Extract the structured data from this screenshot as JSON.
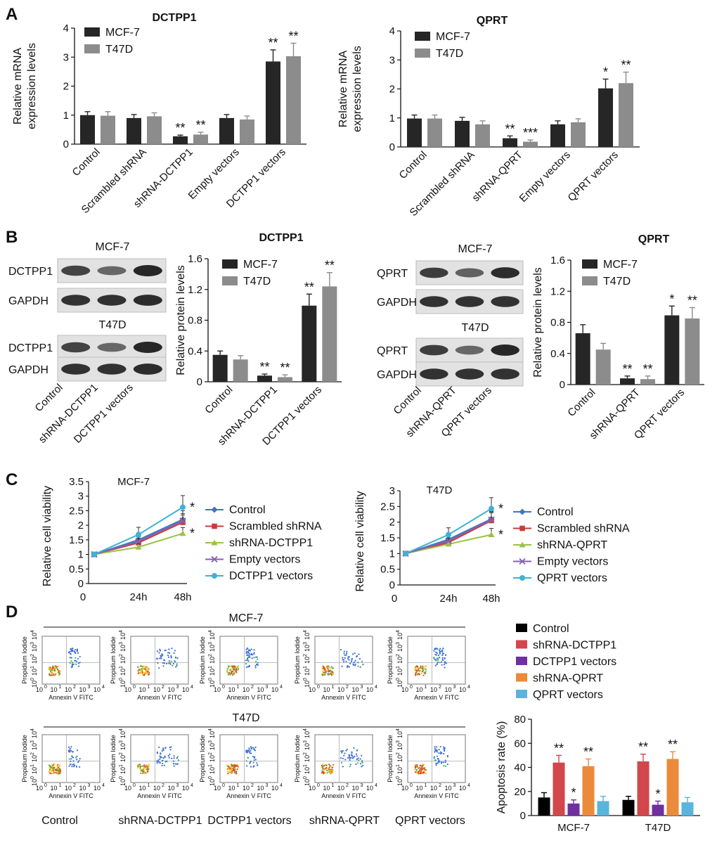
{
  "panel_labels": {
    "A": "A",
    "B": "B",
    "C": "C",
    "D": "D"
  },
  "colors": {
    "mcf7": "#262626",
    "t47d": "#8c8c8c",
    "control": "#000000",
    "sh_dctpp1": "#d2474c",
    "dctpp1_vec": "#7030a0",
    "sh_qprt": "#eb8a3a",
    "qprt_vec": "#5ab4dc",
    "line_control": "#3a78c2",
    "line_scrambled": "#cc3a3a",
    "line_sh": "#99c346",
    "line_empty": "#8462b0",
    "line_vec": "#3db2d6"
  },
  "chart_data": [
    {
      "id": "A1",
      "type": "bar",
      "title": "DCTPP1",
      "ylabel_lines": [
        "Relative mRNA",
        "expression levels"
      ],
      "ylim": [
        0,
        4
      ],
      "yticks": [
        "0",
        "1",
        "2",
        "3",
        "4"
      ],
      "categories": [
        "Control",
        "Scrambled shRNA",
        "shRNA-DCTPP1",
        "Empty vectors",
        "DCTPP1 vectors"
      ],
      "series": [
        {
          "name": "MCF-7",
          "values": [
            1.0,
            0.9,
            0.27,
            0.9,
            2.85
          ],
          "errors": [
            0.12,
            0.12,
            0.04,
            0.12,
            0.4
          ],
          "sig": [
            "",
            "",
            "**",
            "",
            "**"
          ]
        },
        {
          "name": "T47D",
          "values": [
            0.98,
            0.96,
            0.33,
            0.85,
            3.03
          ],
          "errors": [
            0.14,
            0.12,
            0.08,
            0.12,
            0.45
          ],
          "sig": [
            "",
            "",
            "**",
            "",
            "**"
          ]
        }
      ]
    },
    {
      "id": "A2",
      "type": "bar",
      "title": "QPRT",
      "ylabel_lines": [
        "Relative mRNA",
        "expression levels"
      ],
      "ylim": [
        0,
        4
      ],
      "yticks": [
        "0",
        "1",
        "2",
        "3",
        "4"
      ],
      "categories": [
        "Control",
        "Scrambled shRNA",
        "shRNA-QPRT",
        "Empty vectors",
        "QPRT vectors"
      ],
      "series": [
        {
          "name": "MCF-7",
          "values": [
            0.98,
            0.9,
            0.3,
            0.78,
            2.02
          ],
          "errors": [
            0.12,
            0.12,
            0.08,
            0.12,
            0.32
          ],
          "sig": [
            "",
            "",
            "**",
            "",
            "*"
          ]
        },
        {
          "name": "T47D",
          "values": [
            0.98,
            0.78,
            0.18,
            0.85,
            2.2
          ],
          "errors": [
            0.12,
            0.12,
            0.06,
            0.12,
            0.38
          ],
          "sig": [
            "",
            "",
            "***",
            "",
            "**"
          ]
        }
      ]
    },
    {
      "id": "B1",
      "type": "bar",
      "title": "DCTPP1",
      "ylabel_lines": [
        "Relative protein levels"
      ],
      "ylim": [
        0,
        1.6
      ],
      "yticks": [
        "0",
        "0.4",
        "0.8",
        "1.2",
        "1.6"
      ],
      "categories": [
        "Control",
        "shRNA-DCTPP1",
        "DCTPP1 vectors"
      ],
      "series": [
        {
          "name": "MCF-7",
          "values": [
            0.35,
            0.08,
            0.99
          ],
          "errors": [
            0.05,
            0.02,
            0.15
          ],
          "sig": [
            "",
            "**",
            "**"
          ]
        },
        {
          "name": "T47D",
          "values": [
            0.29,
            0.06,
            1.24
          ],
          "errors": [
            0.05,
            0.03,
            0.18
          ],
          "sig": [
            "",
            "**",
            "**"
          ]
        }
      ]
    },
    {
      "id": "B2",
      "type": "bar",
      "title": "QPRT",
      "ylabel_lines": [
        "Relative protein levels"
      ],
      "ylim": [
        0,
        1.6
      ],
      "yticks": [
        "0",
        "0.4",
        "0.8",
        "1.2",
        "1.6"
      ],
      "categories": [
        "Control",
        "shRNA-QPRT",
        "QPRT vectors"
      ],
      "series": [
        {
          "name": "MCF-7",
          "values": [
            0.66,
            0.08,
            0.89
          ],
          "errors": [
            0.11,
            0.03,
            0.12
          ],
          "sig": [
            "",
            "**",
            "*"
          ]
        },
        {
          "name": "T47D",
          "values": [
            0.45,
            0.07,
            0.85
          ],
          "errors": [
            0.08,
            0.04,
            0.14
          ],
          "sig": [
            "",
            "**",
            "**"
          ]
        }
      ]
    },
    {
      "id": "C1",
      "type": "line",
      "title": "MCF-7",
      "ylabel": "Relative cell viability",
      "ylim": [
        0,
        3.5
      ],
      "yticks": [
        "0",
        "0.5",
        "1",
        "1.5",
        "2",
        "2.5",
        "3",
        "3.5"
      ],
      "x": [
        "0",
        "24h",
        "48h"
      ],
      "x_pos": [
        0,
        24,
        48
      ],
      "series": [
        {
          "name": "Control",
          "values": [
            1,
            1.5,
            2.2
          ],
          "errors": [
            0.1,
            0.2,
            0.3
          ],
          "sig": ""
        },
        {
          "name": "Scrambled shRNA",
          "values": [
            1,
            1.4,
            2.1
          ],
          "errors": [
            0.1,
            0.15,
            0.25
          ],
          "sig": ""
        },
        {
          "name": "shRNA-DCTPP1",
          "values": [
            1,
            1.25,
            1.72
          ],
          "errors": [
            0.1,
            0.12,
            0.2
          ],
          "sig": "*"
        },
        {
          "name": "Empty vectors",
          "values": [
            1,
            1.45,
            2.15
          ],
          "errors": [
            0.1,
            0.15,
            0.25
          ],
          "sig": ""
        },
        {
          "name": "DCTPP1 vectors",
          "values": [
            1,
            1.68,
            2.62
          ],
          "errors": [
            0.1,
            0.25,
            0.4
          ],
          "sig": "*"
        }
      ]
    },
    {
      "id": "C2",
      "type": "line",
      "title": "T47D",
      "ylabel": "Relative cell viability",
      "ylim": [
        0,
        3
      ],
      "yticks": [
        "0",
        "0.5",
        "1",
        "1.5",
        "2",
        "2.5",
        "3"
      ],
      "x": [
        "0",
        "24h",
        "48h"
      ],
      "x_pos": [
        0,
        24,
        48
      ],
      "series": [
        {
          "name": "Control",
          "values": [
            1,
            1.45,
            2.1
          ],
          "errors": [
            0.1,
            0.2,
            0.25
          ],
          "sig": ""
        },
        {
          "name": "Scrambled shRNA",
          "values": [
            1,
            1.35,
            2.05
          ],
          "errors": [
            0.1,
            0.15,
            0.25
          ],
          "sig": ""
        },
        {
          "name": "shRNA-QPRT",
          "values": [
            1,
            1.3,
            1.6
          ],
          "errors": [
            0.1,
            0.12,
            0.2
          ],
          "sig": "*"
        },
        {
          "name": "Empty vectors",
          "values": [
            1,
            1.4,
            2.08
          ],
          "errors": [
            0.1,
            0.15,
            0.25
          ],
          "sig": ""
        },
        {
          "name": "QPRT vectors",
          "values": [
            1,
            1.6,
            2.43
          ],
          "errors": [
            0.1,
            0.22,
            0.35
          ],
          "sig": "*"
        }
      ]
    },
    {
      "id": "D",
      "type": "bar",
      "title": "",
      "ylabel_lines": [
        "Apoptosis rate (%)"
      ],
      "ylim": [
        0,
        80
      ],
      "yticks": [
        "0",
        "20",
        "40",
        "60",
        "80"
      ],
      "categories": [
        "MCF-7",
        "T47D"
      ],
      "series": [
        {
          "name": "Control",
          "values": [
            15,
            13
          ],
          "errors": [
            4,
            3
          ],
          "sig": [
            "",
            ""
          ]
        },
        {
          "name": "shRNA-DCTPP1",
          "values": [
            44,
            45
          ],
          "errors": [
            6,
            6
          ],
          "sig": [
            "**",
            "**"
          ]
        },
        {
          "name": "DCTPP1 vectors",
          "values": [
            10,
            9
          ],
          "errors": [
            3,
            3
          ],
          "sig": [
            "*",
            "*"
          ]
        },
        {
          "name": "shRNA-QPRT",
          "values": [
            41,
            47
          ],
          "errors": [
            6,
            6
          ],
          "sig": [
            "**",
            "**"
          ]
        },
        {
          "name": "QPRT vectors",
          "values": [
            12,
            11
          ],
          "errors": [
            4,
            4
          ],
          "sig": [
            "",
            ""
          ]
        }
      ]
    }
  ],
  "blots": {
    "left": {
      "cell_lines": [
        "MCF-7",
        "T47D"
      ],
      "rows": [
        "DCTPP1",
        "GAPDH",
        "DCTPP1",
        "GAPDH"
      ],
      "lanes": [
        "Control",
        "shRNA-DCTPP1",
        "DCTPP1 vectors"
      ]
    },
    "right": {
      "cell_lines": [
        "MCF-7",
        "T47D"
      ],
      "rows": [
        "QPRT",
        "GAPDH",
        "QPRT",
        "GAPDH"
      ],
      "lanes": [
        "Control",
        "shRNA-QPRT",
        "QPRT vectors"
      ]
    }
  },
  "flow": {
    "groups": [
      "MCF-7",
      "T47D"
    ],
    "xlabel": "Annexin V FITC",
    "ylabel": "Propidium Iodide",
    "axis_base": "10",
    "tick_exps": [
      "0",
      "1",
      "2",
      "3",
      "4"
    ],
    "captions": [
      "Control",
      "shRNA-DCTPP1",
      "DCTPP1 vectors",
      "shRNA-QPRT",
      "QPRT vectors"
    ]
  }
}
